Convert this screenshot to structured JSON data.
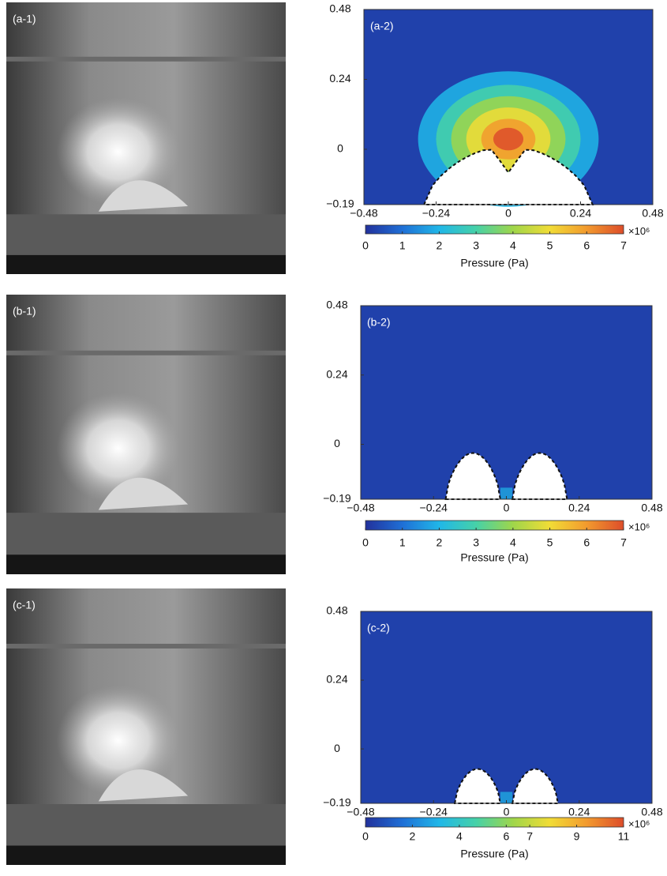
{
  "chart_data": [
    {
      "type": "heatmap",
      "photo_label": "(a-1)",
      "panel_label": "(a-2)",
      "xlim": [
        -0.48,
        0.48
      ],
      "ylim": [
        -0.19,
        0.48
      ],
      "xticks": [
        {
          "value": -0.48,
          "label": "−0.48"
        },
        {
          "value": -0.24,
          "label": "−0.24"
        },
        0,
        0.24,
        0.48
      ],
      "yticks": [
        {
          "value": -0.19,
          "label": "−0.19"
        },
        0,
        0.24,
        0.48
      ],
      "clim": [
        0,
        7
      ],
      "cticks": [
        0,
        1,
        2,
        3,
        4,
        5,
        6,
        7
      ],
      "colorbar_multiplier": "×10⁶",
      "colorbar_label": "Pressure (Pa)",
      "colormap": [
        "#22319c",
        "#1f6fd6",
        "#20b7e8",
        "#46d1a8",
        "#9fd64a",
        "#f1dc36",
        "#f29a2e",
        "#dd4d2a"
      ]
    },
    {
      "type": "heatmap",
      "photo_label": "(b-1)",
      "panel_label": "(b-2)",
      "xlim": [
        -0.48,
        0.48
      ],
      "ylim": [
        -0.19,
        0.48
      ],
      "xticks": [
        {
          "value": -0.48,
          "label": "−0.48"
        },
        {
          "value": -0.24,
          "label": "−0.24"
        },
        0,
        0.24,
        0.48
      ],
      "yticks": [
        {
          "value": -0.19,
          "label": "−0.19"
        },
        0,
        0.24,
        0.48
      ],
      "clim": [
        0,
        7
      ],
      "cticks": [
        0,
        1,
        2,
        3,
        4,
        5,
        6,
        7
      ],
      "colorbar_multiplier": "×10⁶",
      "colorbar_label": "Pressure (Pa)",
      "colormap": [
        "#22319c",
        "#1f6fd6",
        "#20b7e8",
        "#46d1a8",
        "#9fd64a",
        "#f1dc36",
        "#f29a2e",
        "#dd4d2a"
      ]
    },
    {
      "type": "heatmap",
      "photo_label": "(c-1)",
      "panel_label": "(c-2)",
      "xlim": [
        -0.48,
        0.48
      ],
      "ylim": [
        -0.19,
        0.48
      ],
      "xticks": [
        {
          "value": -0.48,
          "label": "−0.48"
        },
        {
          "value": -0.24,
          "label": "−0.24"
        },
        0,
        0.24,
        0.48
      ],
      "yticks": [
        {
          "value": -0.19,
          "label": "−0.19"
        },
        0,
        0.24,
        0.48
      ],
      "clim": [
        0,
        11
      ],
      "cticks": [
        0,
        2,
        4,
        6,
        7,
        9,
        11
      ],
      "colorbar_multiplier": "×10⁶",
      "colorbar_label": "Pressure (Pa)",
      "colormap": [
        "#22319c",
        "#1f6fd6",
        "#20b7e8",
        "#46d1a8",
        "#9fd64a",
        "#f1dc36",
        "#f29a2e",
        "#dd4d2a"
      ]
    }
  ]
}
